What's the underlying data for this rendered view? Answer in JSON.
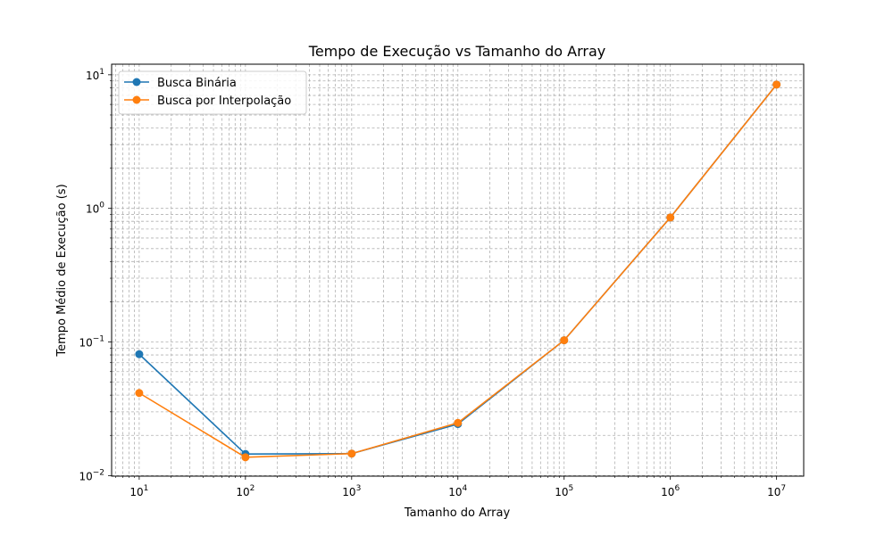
{
  "chart_data": {
    "type": "line",
    "title": "Tempo de Execução vs Tamanho do Array",
    "xlabel": "Tamanho do Array",
    "ylabel": "Tempo Médio de Execução (s)",
    "x_scale": "log",
    "y_scale": "log",
    "xlim": [
      5.5,
      18000000
    ],
    "ylim": [
      0.0099,
      12
    ],
    "grid": true,
    "legend_position": "top-left",
    "x_ticks": [
      {
        "value": 10,
        "base": "10",
        "exp": "1"
      },
      {
        "value": 100,
        "base": "10",
        "exp": "2"
      },
      {
        "value": 1000,
        "base": "10",
        "exp": "3"
      },
      {
        "value": 10000,
        "base": "10",
        "exp": "4"
      },
      {
        "value": 100000,
        "base": "10",
        "exp": "5"
      },
      {
        "value": 1000000,
        "base": "10",
        "exp": "6"
      },
      {
        "value": 10000000,
        "base": "10",
        "exp": "7"
      }
    ],
    "y_ticks": [
      {
        "value": 0.01,
        "base": "10",
        "exp": "−2"
      },
      {
        "value": 0.1,
        "base": "10",
        "exp": "−1"
      },
      {
        "value": 1,
        "base": "10",
        "exp": "0"
      },
      {
        "value": 10,
        "base": "10",
        "exp": "1"
      }
    ],
    "x": [
      10,
      100,
      1000,
      10000,
      100000,
      1000000,
      10000000
    ],
    "series": [
      {
        "name": "Busca Binária",
        "color": "#1f77b4",
        "values": [
          0.081,
          0.0145,
          0.0146,
          0.0243,
          0.103,
          0.855,
          8.45
        ]
      },
      {
        "name": "Busca por Interpolação",
        "color": "#ff7f0e",
        "values": [
          0.0415,
          0.0137,
          0.0146,
          0.0248,
          0.103,
          0.855,
          8.45
        ]
      }
    ]
  }
}
